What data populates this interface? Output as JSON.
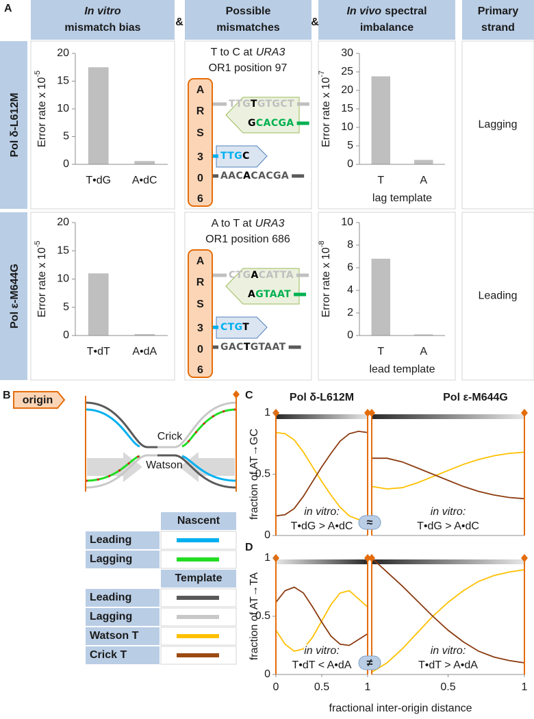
{
  "panel_a": {
    "label": "A",
    "headers": [
      [
        [
          {
            "text": "In vitro",
            "italic": true
          }
        ],
        [
          {
            "text": "mismatch bias"
          }
        ]
      ],
      [
        [
          {
            "text": "Possible"
          }
        ],
        [
          {
            "text": "mismatches"
          }
        ]
      ],
      [
        [
          {
            "text": "In vivo",
            "italic": true
          },
          {
            "text": "spectral"
          }
        ],
        [
          {
            "text": "imbalance"
          }
        ]
      ],
      [
        [
          {
            "text": "Primary"
          }
        ],
        [
          {
            "text": "strand"
          }
        ]
      ]
    ],
    "separators": [
      "&",
      "&"
    ],
    "rows": [
      {
        "label": "Pol δ-L612M",
        "primary": "Lagging",
        "mismatch": {
          "title": [
            [
              {
                "text": "T to C at"
              },
              {
                "text": "URA3",
                "italic": true
              }
            ],
            [
              {
                "text": "OR1 position 97"
              }
            ]
          ],
          "origin_letters": [
            "A",
            "R",
            "S",
            "3",
            "0",
            "6"
          ],
          "strands": [
            {
              "color": "#bfbfbf",
              "segments": [
                {
                  "text": "TTG"
                },
                {
                  "text": "T",
                  "color": "#000000"
                },
                {
                  "text": "GTGCT"
                }
              ]
            },
            {
              "color": "#00b050",
              "segments": [
                {
                  "text": "G",
                  "color": "#000000"
                },
                {
                  "text": "CACGA"
                }
              ]
            },
            {
              "color": "#00b0f0",
              "segments": [
                {
                  "text": "TTG"
                },
                {
                  "text": "C",
                  "color": "#000000"
                }
              ]
            },
            {
              "color": "#595959",
              "segments": [
                {
                  "text": "AAC"
                },
                {
                  "text": "A",
                  "color": "#000000"
                },
                {
                  "text": "CACGA"
                }
              ]
            }
          ]
        }
      },
      {
        "label": "Pol ε-M644G",
        "primary": "Leading",
        "mismatch": {
          "title": [
            [
              {
                "text": "A to T at"
              },
              {
                "text": "URA3",
                "italic": true
              }
            ],
            [
              {
                "text": "OR1 position 686"
              }
            ]
          ],
          "origin_letters": [
            "A",
            "R",
            "S",
            "3",
            "0",
            "6"
          ],
          "strands": [
            {
              "color": "#bfbfbf",
              "segments": [
                {
                  "text": "CTG"
                },
                {
                  "text": "A",
                  "color": "#000000"
                },
                {
                  "text": "CATTA"
                }
              ]
            },
            {
              "color": "#00b050",
              "segments": [
                {
                  "text": "A",
                  "color": "#000000"
                },
                {
                  "text": "GTAAT"
                }
              ]
            },
            {
              "color": "#00b0f0",
              "segments": [
                {
                  "text": "CTG"
                },
                {
                  "text": "T",
                  "color": "#000000"
                }
              ]
            },
            {
              "color": "#595959",
              "segments": [
                {
                  "text": "GAC"
                },
                {
                  "text": "T",
                  "color": "#000000"
                },
                {
                  "text": "GTAAT"
                }
              ]
            }
          ]
        }
      }
    ]
  },
  "panel_b": {
    "label": "B",
    "origin": "origin",
    "crick": "Crick",
    "watson": "Watson",
    "legend": [
      {
        "header": "Nascent",
        "rows": [
          {
            "label": "Leading",
            "color": "#00b0f0"
          },
          {
            "label": "Lagging",
            "color": "#22dd22"
          }
        ]
      },
      {
        "header": "Template",
        "rows": [
          {
            "label": "Leading",
            "color": "#595959"
          },
          {
            "label": "Lagging",
            "color": "#c8c8c8"
          },
          {
            "label": "Watson T",
            "color": "#ffc000"
          },
          {
            "label": "Crick T",
            "color": "#9c4a12"
          }
        ]
      }
    ]
  },
  "panel_cd": {
    "labels": [
      "C",
      "D"
    ],
    "symbols": [
      "≈",
      "≠"
    ],
    "xlabel": "fractional inter-origin distance"
  },
  "chart_data": [
    {
      "type": "bar",
      "ylabel": "Error rate x 10",
      "ylabel_exponent": "-5",
      "categories": [
        "T•dG",
        "A•dC"
      ],
      "values": [
        17.5,
        0.6
      ],
      "color": "#bfbfbf",
      "ylim": [
        0,
        20
      ],
      "yticks": [
        0,
        5,
        10,
        15,
        20
      ]
    },
    {
      "type": "bar",
      "ylabel": "Error rate x 10",
      "ylabel_exponent": "-7",
      "categories": [
        "T",
        "A"
      ],
      "values": [
        23.8,
        1.2
      ],
      "color": "#bfbfbf",
      "xlabel": "lag template",
      "ylim": [
        0,
        30
      ],
      "yticks": [
        0,
        5,
        10,
        15,
        20,
        25,
        30
      ]
    },
    {
      "type": "bar",
      "ylabel": "Error rate x 10",
      "ylabel_exponent": "-5",
      "categories": [
        "T•dT",
        "A•dA"
      ],
      "values": [
        11,
        0.25
      ],
      "color": "#bfbfbf",
      "ylim": [
        0,
        20
      ],
      "yticks": [
        0,
        5,
        10,
        15,
        20
      ]
    },
    {
      "type": "bar",
      "ylabel": "Error rate x 10",
      "ylabel_exponent": "-8",
      "categories": [
        "T",
        "A"
      ],
      "values": [
        6.8,
        0.1
      ],
      "color": "#bfbfbf",
      "xlabel": "lead template",
      "ylim": [
        0,
        10
      ],
      "yticks": [
        0,
        2,
        4,
        6,
        8,
        10
      ]
    },
    {
      "type": "line",
      "title": "Pol δ-L612M",
      "title_color": "#00b050",
      "ylabel": "fraction of AT→GC",
      "annotation": [
        "in vitro:",
        "T•dG > A•dC"
      ],
      "x": [
        0,
        0.1,
        0.2,
        0.3,
        0.4,
        0.5,
        0.6,
        0.7,
        0.8,
        0.9,
        1
      ],
      "series": [
        {
          "color": "#ffc000",
          "values": [
            0.84,
            0.83,
            0.78,
            0.68,
            0.56,
            0.44,
            0.33,
            0.23,
            0.16,
            0.13,
            0.12
          ]
        },
        {
          "color": "#8b3a0f",
          "values": [
            0.16,
            0.17,
            0.22,
            0.32,
            0.44,
            0.56,
            0.67,
            0.77,
            0.83,
            0.85,
            0.84
          ]
        }
      ],
      "xlim": [
        0,
        1
      ],
      "ylim": [
        0,
        1
      ],
      "yticks": [
        0,
        0.5,
        1
      ]
    },
    {
      "type": "line",
      "title": "Pol ε-M644G",
      "title_color": "#0070c0",
      "annotation": [
        "in vitro:",
        "T•dG > A•dC"
      ],
      "x": [
        0,
        0.1,
        0.2,
        0.3,
        0.4,
        0.5,
        0.6,
        0.7,
        0.8,
        0.9,
        1
      ],
      "series": [
        {
          "color": "#ffc000",
          "values": [
            0.4,
            0.38,
            0.39,
            0.43,
            0.48,
            0.53,
            0.58,
            0.62,
            0.65,
            0.67,
            0.68
          ]
        },
        {
          "color": "#8b3a0f",
          "values": [
            0.63,
            0.63,
            0.6,
            0.55,
            0.5,
            0.45,
            0.4,
            0.36,
            0.33,
            0.31,
            0.3
          ]
        }
      ],
      "xlim": [
        0,
        1
      ],
      "ylim": [
        0,
        1
      ]
    },
    {
      "type": "line",
      "ylabel": "fraction of AT→TA",
      "annotation": [
        "in vitro:",
        "T•dT < A•dA"
      ],
      "x": [
        0,
        0.1,
        0.2,
        0.3,
        0.4,
        0.5,
        0.6,
        0.7,
        0.8,
        0.9,
        1
      ],
      "series": [
        {
          "color": "#ffc000",
          "values": [
            0.38,
            0.26,
            0.2,
            0.22,
            0.32,
            0.46,
            0.6,
            0.7,
            0.72,
            0.65,
            0.58
          ]
        },
        {
          "color": "#8b3a0f",
          "values": [
            0.62,
            0.72,
            0.75,
            0.7,
            0.58,
            0.45,
            0.33,
            0.26,
            0.25,
            0.3,
            0.35
          ]
        }
      ],
      "xlim": [
        0,
        1
      ],
      "ylim": [
        0,
        1
      ],
      "yticks": [
        0,
        0.5,
        1
      ],
      "xticks": [
        0,
        0.5,
        1
      ]
    },
    {
      "type": "line",
      "annotation": [
        "in vitro:",
        "T•dT > A•dA"
      ],
      "x": [
        0,
        0.1,
        0.2,
        0.3,
        0.4,
        0.5,
        0.6,
        0.7,
        0.8,
        0.9,
        1
      ],
      "series": [
        {
          "color": "#ffc000",
          "values": [
            0.02,
            0.1,
            0.22,
            0.36,
            0.5,
            0.62,
            0.72,
            0.8,
            0.85,
            0.88,
            0.9
          ]
        },
        {
          "color": "#8b3a0f",
          "values": [
            1,
            0.88,
            0.76,
            0.63,
            0.5,
            0.38,
            0.28,
            0.2,
            0.15,
            0.12,
            0.1
          ]
        }
      ],
      "xlim": [
        0,
        1
      ],
      "ylim": [
        0,
        1
      ],
      "xticks": [
        0.5,
        1
      ]
    }
  ]
}
